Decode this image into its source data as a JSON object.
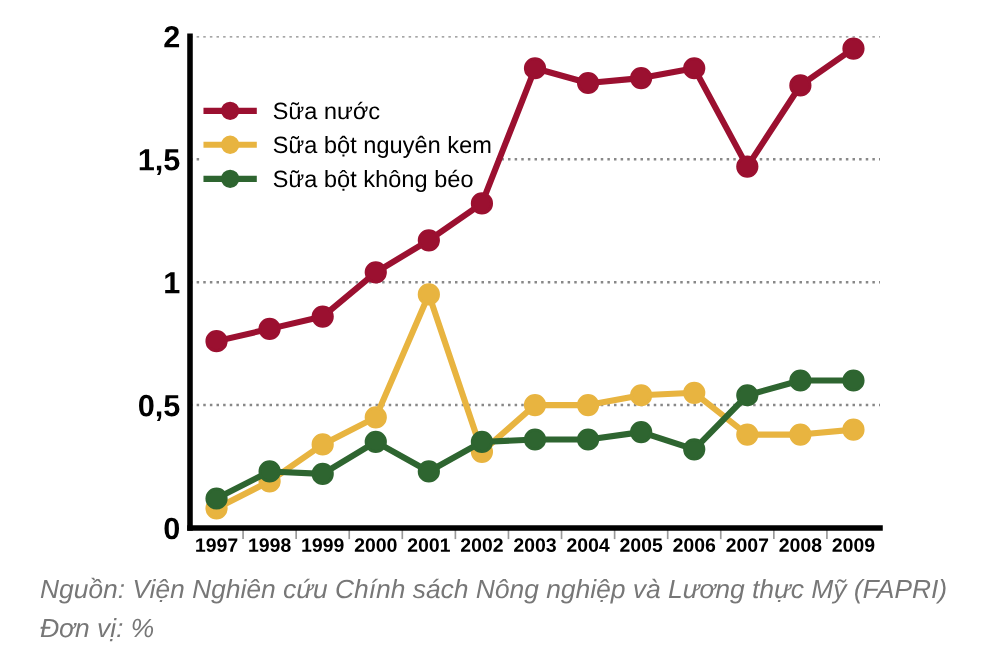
{
  "chart_data": {
    "type": "line",
    "categories": [
      "1997",
      "1998",
      "1999",
      "2000",
      "2001",
      "2002",
      "2003",
      "2004",
      "2005",
      "2006",
      "2007",
      "2008",
      "2009"
    ],
    "series": [
      {
        "name": "Sữa nước",
        "color": "#9b1030",
        "values": [
          0.76,
          0.81,
          0.86,
          1.04,
          1.17,
          1.32,
          1.87,
          1.81,
          1.83,
          1.87,
          1.47,
          1.8,
          1.95
        ]
      },
      {
        "name": "Sữa bột nguyên kem",
        "color": "#e8b440",
        "values": [
          0.08,
          0.19,
          0.34,
          0.45,
          0.95,
          0.31,
          0.5,
          0.5,
          0.54,
          0.55,
          0.38,
          0.38,
          0.4
        ]
      },
      {
        "name": "Sữa bột không béo",
        "color": "#2e6530",
        "values": [
          0.12,
          0.23,
          0.22,
          0.35,
          0.23,
          0.35,
          0.36,
          0.36,
          0.39,
          0.32,
          0.54,
          0.6,
          0.6
        ]
      }
    ],
    "ylim": [
      0,
      2
    ],
    "yticks": [
      0,
      {
        "value": 0.5,
        "label": "0,5"
      },
      1,
      {
        "value": 1.5,
        "label": "1,5"
      },
      2
    ],
    "grid": "y",
    "legend": "top left",
    "marker": "circle",
    "line_style": "solid",
    "annotations": [
      "Nguồn: Viện Nghiên cứu Chính sách Nông nghiệp và Lương thực Mỹ (FAPRI)",
      "Đơn vị: %"
    ]
  }
}
